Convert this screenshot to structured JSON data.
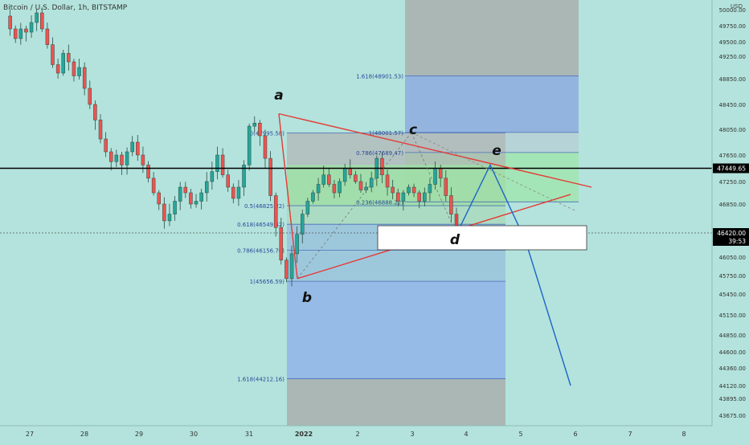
{
  "header": {
    "symbol_title": "Bitcoin / U.S. Dollar, 1h, BITSTAMP",
    "currency": "USD"
  },
  "price_scale": {
    "ticks": [
      "50000.00",
      "49750.00",
      "49500.00",
      "49250.00",
      "48850.00",
      "48450.00",
      "48050.00",
      "47650.00",
      "47250.00",
      "46850.00",
      "46050.00",
      "45750.00",
      "45450.00",
      "45150.00",
      "44850.00",
      "44600.00",
      "44360.00",
      "44120.00",
      "43895.00",
      "43675.00"
    ]
  },
  "time_axis": {
    "labels": [
      "27",
      "28",
      "29",
      "30",
      "31",
      "2022",
      "2",
      "3",
      "4",
      "5",
      "6",
      "7",
      "8"
    ]
  },
  "current_price": {
    "label": "47449.65",
    "color": "#000000"
  },
  "last_price": {
    "label": "46420.00",
    "countdown": "39:53"
  },
  "fib_left": {
    "levels": [
      {
        "label": "0(47995.58)",
        "value": 47995.58
      },
      {
        "label": "0.5(46825.22)",
        "value": 46825.22
      },
      {
        "label": "0.618(46549.42)",
        "value": 46549.42
      },
      {
        "label": "0.786(46156.76)",
        "value": 46156.76
      },
      {
        "label": "1(45656.59)",
        "value": 45656.59
      },
      {
        "label": "1.618(44212.16)",
        "value": 44212.16
      }
    ]
  },
  "fib_right": {
    "levels": [
      {
        "label": "1.618(48901.53)",
        "value": 48901.53
      },
      {
        "label": "1(48001.57)",
        "value": 48001.57
      },
      {
        "label": "0.786(47689.47)",
        "value": 47689.47
      },
      {
        "label": "0.236(46888.22)",
        "value": 46888.22
      }
    ]
  },
  "wave_labels": {
    "a": "a",
    "b": "b",
    "c": "c",
    "d": "d",
    "e": "e"
  },
  "colors": {
    "background": "#b3e3dc",
    "up_candle": "#26a69a",
    "down_candle": "#ef5350",
    "triangle": "#e53935",
    "projection": "#1e63c8",
    "fib_blue_zone": "#8fb4e8",
    "fib_gray_zone": "#a8a8a8",
    "fib_green_zone": "#9ee6a6"
  },
  "chart_data": {
    "type": "candlestick",
    "title": "Bitcoin / U.S. Dollar, 1h, BITSTAMP",
    "ylabel": "USD",
    "ylim": [
      43550,
      50300
    ],
    "x_tick_labels": [
      "27",
      "28",
      "29",
      "30",
      "31",
      "2022",
      "2",
      "3",
      "4",
      "5",
      "6",
      "7",
      "8"
    ],
    "price_path": [
      49900,
      49700,
      49550,
      49700,
      49650,
      49800,
      49950,
      49700,
      49450,
      49100,
      48950,
      49300,
      49150,
      48900,
      49050,
      48700,
      48450,
      48200,
      47900,
      47700,
      47550,
      47650,
      47500,
      47700,
      47850,
      47650,
      47500,
      47300,
      47050,
      46850,
      46600,
      46700,
      46900,
      47150,
      47050,
      46850,
      46900,
      47050,
      47250,
      47400,
      47650,
      47350,
      47150,
      46950,
      47150,
      47500,
      48100,
      48150,
      47950,
      47600,
      47000,
      46500,
      46000,
      45700,
      46100,
      46400,
      46700,
      46900,
      47050,
      47200,
      47350,
      47200,
      47050,
      47250,
      47450,
      47350,
      47250,
      47100,
      47150,
      47300,
      47600,
      47350,
      47150,
      47050,
      46900,
      47050,
      47150,
      47050,
      46900,
      47050,
      47200,
      47450,
      47300,
      47000,
      46700,
      46420
    ],
    "triangle_points": {
      "a": 48300,
      "b": 45700,
      "c": 48000,
      "d": 46400,
      "e": 47500
    },
    "projection_target": 44120,
    "current_price": 47449.65,
    "last_price": 46420.0
  }
}
